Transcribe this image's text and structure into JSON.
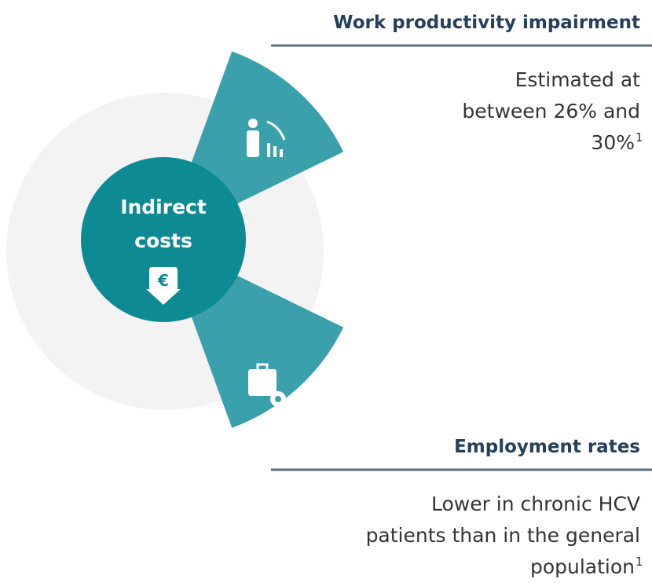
{
  "center": {
    "lines": [
      "Indirect",
      "costs"
    ]
  },
  "sections": [
    {
      "title": "Work productivity impairment",
      "lines": [
        "Estimated at",
        "between 26% and",
        "30%"
      ],
      "note": "1"
    },
    {
      "title": "Employment rates",
      "lines": [
        "Lower in chronic HCV",
        "patients than in the general",
        "population"
      ],
      "note": "1"
    }
  ]
}
